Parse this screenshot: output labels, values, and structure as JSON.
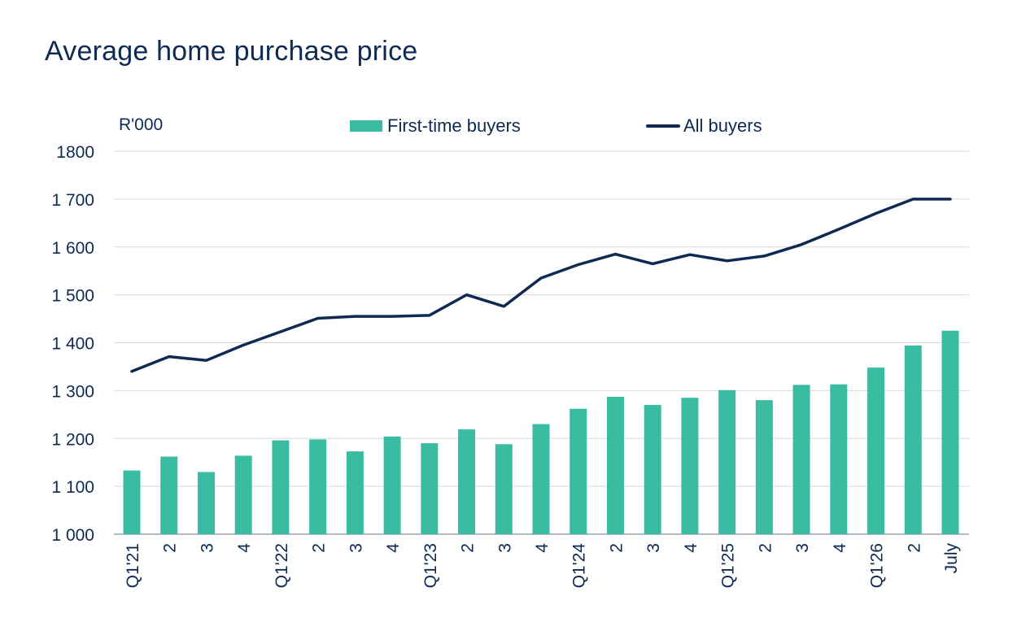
{
  "chart_data": {
    "type": "bar",
    "title": "Average home purchase price",
    "unit_label": "R'000",
    "categories": [
      "Q1'21",
      "2",
      "3",
      "4",
      "Q1'22",
      "2",
      "3",
      "4",
      "Q1'23",
      "2",
      "3",
      "4",
      "Q1'24",
      "2",
      "3",
      "4",
      "Q1'25",
      "2",
      "3",
      "4",
      "Q1'26",
      "2",
      "July"
    ],
    "series": [
      {
        "name": "First-time buyers",
        "kind": "bar",
        "color": "#3abca3",
        "values": [
          1133,
          1162,
          1130,
          1164,
          1196,
          1198,
          1173,
          1204,
          1190,
          1219,
          1188,
          1230,
          1262,
          1287,
          1270,
          1285,
          1301,
          1280,
          1312,
          1313,
          1348,
          1394,
          1425
        ]
      },
      {
        "name": "All buyers",
        "kind": "line",
        "color": "#0e2a52",
        "values": [
          1340,
          1371,
          1363,
          1395,
          1423,
          1451,
          1455,
          1455,
          1457,
          1500,
          1476,
          1535,
          1563,
          1585,
          1565,
          1584,
          1571,
          1581,
          1605,
          1637,
          1670,
          1700,
          1700
        ]
      }
    ],
    "yticks": [
      "1 000",
      "1 100",
      "1 200",
      "1 300",
      "1 400",
      "1 500",
      "1 600",
      "1 700",
      "1800"
    ],
    "ylim": [
      1000,
      1800
    ],
    "grid": true,
    "legend_position": "top"
  }
}
